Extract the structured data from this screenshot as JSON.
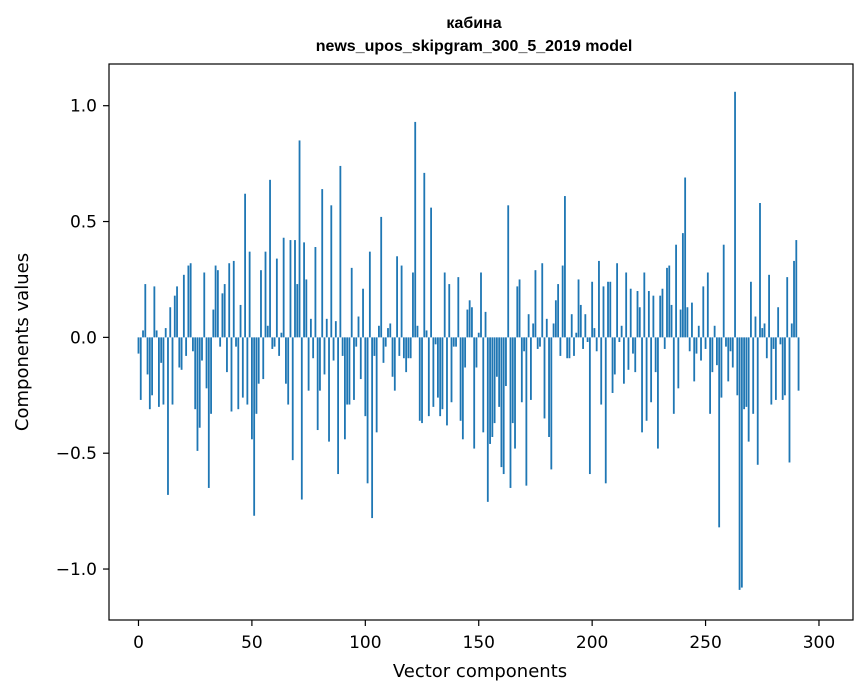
{
  "chart_data": {
    "type": "bar",
    "title": "кабина",
    "subtitle": "news_upos_skipgram_300_5_2019 model",
    "xlabel": "Vector components",
    "ylabel": "Components values",
    "xlim": [
      -13,
      315
    ],
    "ylim": [
      -1.22,
      1.18
    ],
    "x_ticks": [
      0,
      50,
      100,
      150,
      200,
      250,
      300
    ],
    "x_tick_labels": [
      "0",
      "50",
      "100",
      "150",
      "200",
      "250",
      "300"
    ],
    "y_ticks": [
      -1.0,
      -0.5,
      0.0,
      0.5,
      1.0
    ],
    "y_tick_labels": [
      "−1.0",
      "−0.5",
      "0.0",
      "0.5",
      "1.0"
    ],
    "bar_color": "#1f77b4",
    "grid": false,
    "values": [
      -0.07,
      -0.27,
      0.03,
      0.23,
      -0.16,
      -0.31,
      -0.25,
      0.22,
      0.03,
      -0.3,
      -0.11,
      -0.29,
      0.04,
      -0.68,
      0.13,
      -0.29,
      0.18,
      0.22,
      -0.13,
      -0.14,
      0.27,
      -0.08,
      0.31,
      0.32,
      -0.06,
      -0.31,
      -0.49,
      -0.39,
      -0.1,
      0.28,
      -0.22,
      -0.65,
      -0.33,
      0.12,
      0.31,
      0.29,
      -0.04,
      0.19,
      0.23,
      -0.15,
      0.32,
      -0.32,
      0.33,
      -0.04,
      -0.31,
      0.14,
      -0.26,
      0.62,
      -0.29,
      0.37,
      -0.44,
      -0.77,
      -0.33,
      -0.2,
      0.29,
      -0.18,
      0.37,
      0.05,
      0.68,
      -0.05,
      -0.04,
      0.34,
      -0.08,
      0.02,
      0.43,
      -0.2,
      -0.29,
      0.42,
      -0.53,
      0.42,
      0.23,
      0.85,
      -0.7,
      0.41,
      0.25,
      -0.23,
      0.08,
      -0.09,
      0.39,
      -0.4,
      -0.23,
      0.64,
      -0.16,
      0.08,
      -0.45,
      0.57,
      -0.1,
      0.07,
      -0.59,
      0.74,
      -0.08,
      -0.44,
      -0.29,
      -0.29,
      0.3,
      -0.27,
      -0.04,
      0.09,
      -0.18,
      0.21,
      -0.34,
      -0.63,
      0.37,
      -0.78,
      -0.08,
      -0.41,
      0.05,
      0.52,
      -0.11,
      -0.04,
      0.04,
      0.06,
      -0.17,
      -0.23,
      0.35,
      -0.08,
      0.31,
      -0.09,
      -0.15,
      -0.09,
      -0.09,
      0.28,
      0.93,
      0.05,
      -0.36,
      -0.37,
      0.71,
      0.03,
      -0.34,
      0.56,
      -0.3,
      -0.03,
      -0.26,
      -0.34,
      -0.31,
      0.28,
      -0.38,
      0.23,
      -0.28,
      -0.04,
      -0.04,
      0.26,
      -0.36,
      -0.44,
      -0.13,
      0.12,
      0.16,
      0.13,
      -0.48,
      -0.13,
      0.02,
      0.28,
      -0.41,
      0.11,
      -0.71,
      -0.46,
      -0.43,
      -0.37,
      -0.17,
      -0.3,
      -0.56,
      -0.59,
      -0.21,
      0.57,
      -0.65,
      -0.37,
      -0.48,
      0.22,
      0.25,
      -0.28,
      -0.06,
      -0.64,
      0.1,
      -0.27,
      0.06,
      0.29,
      -0.05,
      -0.04,
      0.32,
      -0.35,
      0.08,
      -0.43,
      -0.57,
      0.06,
      0.16,
      0.23,
      -0.08,
      0.31,
      0.61,
      -0.09,
      -0.09,
      0.1,
      -0.08,
      0.02,
      0.25,
      0.14,
      -0.05,
      0.1,
      -0.02,
      -0.59,
      0.24,
      0.04,
      -0.06,
      0.33,
      -0.29,
      0.22,
      -0.63,
      0.24,
      0.24,
      -0.24,
      -0.16,
      0.32,
      -0.02,
      0.05,
      -0.2,
      0.28,
      -0.14,
      0.21,
      -0.07,
      -0.15,
      0.2,
      0.13,
      -0.41,
      0.28,
      -0.36,
      0.2,
      -0.28,
      0.18,
      -0.15,
      -0.48,
      0.18,
      0.21,
      -0.05,
      0.3,
      0.31,
      0.14,
      -0.33,
      0.4,
      -0.22,
      0.12,
      0.45,
      0.69,
      0.13,
      -0.06,
      0.15,
      -0.19,
      -0.07,
      0.05,
      -0.1,
      0.22,
      -0.05,
      0.28,
      -0.33,
      -0.15,
      0.05,
      -0.12,
      -0.82,
      -0.26,
      0.4,
      -0.04,
      -0.19,
      -0.06,
      -0.13,
      1.06,
      -0.25,
      -1.09,
      -1.08,
      -0.31,
      -0.3,
      -0.45,
      0.24,
      -0.33,
      0.09,
      -0.55,
      0.58,
      0.04,
      0.06,
      -0.09,
      0.27,
      -0.29,
      -0.05,
      -0.27,
      0.13,
      -0.03,
      -0.27,
      -0.25,
      0.26,
      -0.54,
      0.06,
      0.33,
      0.42,
      -0.23
    ]
  }
}
